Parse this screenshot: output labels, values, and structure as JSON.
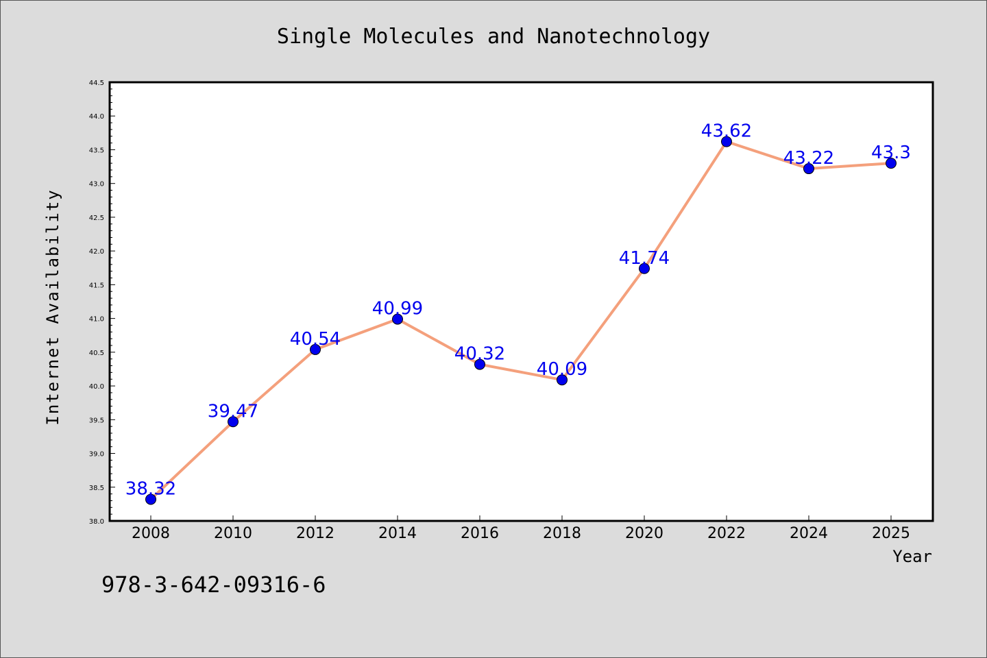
{
  "chart_data": {
    "type": "line",
    "title": "Single Molecules and Nanotechnology",
    "xlabel": "Year",
    "ylabel": "Internet Availability",
    "categories": [
      "2008",
      "2010",
      "2012",
      "2014",
      "2016",
      "2018",
      "2020",
      "2022",
      "2024",
      "2025"
    ],
    "series": [
      {
        "values": [
          38.32,
          39.47,
          40.54,
          40.99,
          40.32,
          40.09,
          41.74,
          43.62,
          43.22,
          43.3
        ]
      }
    ],
    "data_labels": [
      "38.32",
      "39.47",
      "40.54",
      "40.99",
      "40.32",
      "40.09",
      "41.74",
      "43.62",
      "43.22",
      "43.3"
    ],
    "ylim": [
      38.0,
      44.5
    ],
    "y_ticks": [
      "38.0",
      "38.5",
      "39.0",
      "39.5",
      "40.0",
      "40.5",
      "41.0",
      "41.5",
      "42.0",
      "42.5",
      "43.0",
      "43.5",
      "44.0",
      "44.5"
    ],
    "grid": false,
    "line_color": "#f4a07c",
    "marker_color": "#0000ee",
    "label_color": "#0000ee"
  },
  "footer": {
    "isbn": "978-3-642-09316-6"
  }
}
